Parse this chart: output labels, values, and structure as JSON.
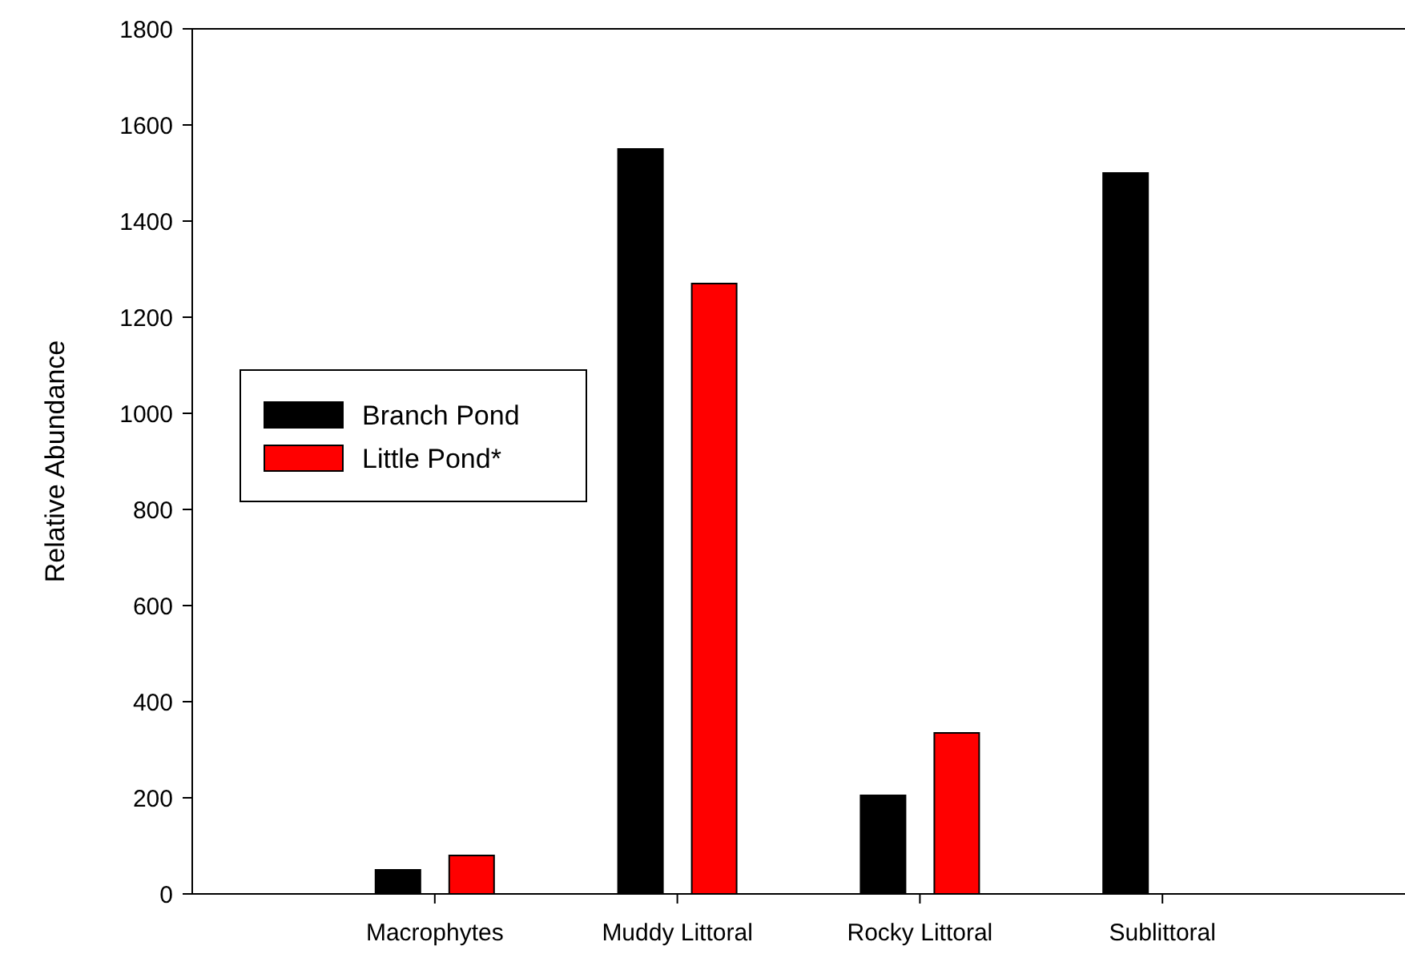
{
  "chart_data": {
    "type": "bar",
    "ylabel": "Relative Abundance",
    "categories": [
      "Macrophytes",
      "Muddy Littoral",
      "Rocky Littoral",
      "Sublittoral"
    ],
    "series": [
      {
        "name": "Branch Pond",
        "color": "#000000",
        "values": [
          50,
          1550,
          205,
          1500
        ]
      },
      {
        "name": "Little Pond*",
        "color": "#ff0000",
        "values": [
          80,
          1270,
          335,
          null
        ]
      }
    ],
    "ylim": [
      0,
      1800
    ],
    "yticks": [
      0,
      200,
      400,
      600,
      800,
      1000,
      1200,
      1400,
      1600,
      1800
    ],
    "legend": "left"
  }
}
